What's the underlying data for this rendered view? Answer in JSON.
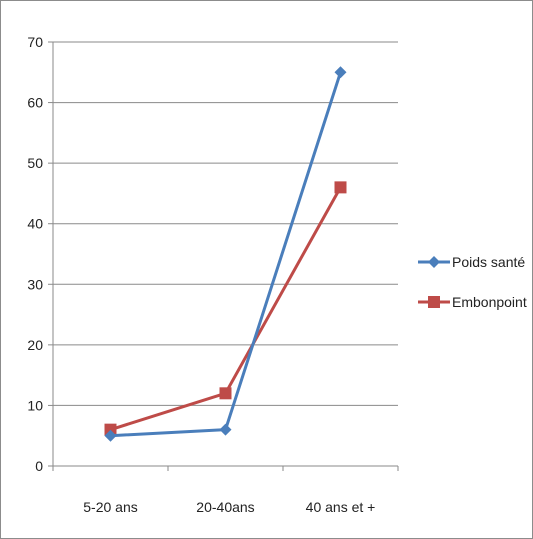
{
  "chart_data": {
    "type": "line",
    "categories": [
      "5-20 ans",
      "20-40ans",
      "40 ans et +"
    ],
    "series": [
      {
        "name": "Poids santé",
        "values": [
          5,
          6,
          65
        ],
        "color": "#4a7ebb",
        "marker": "diamond"
      },
      {
        "name": "Embonpoint",
        "values": [
          6,
          12,
          46
        ],
        "color": "#be4b48",
        "marker": "square"
      }
    ],
    "ylim": [
      0,
      70
    ],
    "yticks": [
      0,
      10,
      20,
      30,
      40,
      50,
      60,
      70
    ],
    "grid": true,
    "legend_position": "right",
    "title": "",
    "xlabel": "",
    "ylabel": ""
  }
}
